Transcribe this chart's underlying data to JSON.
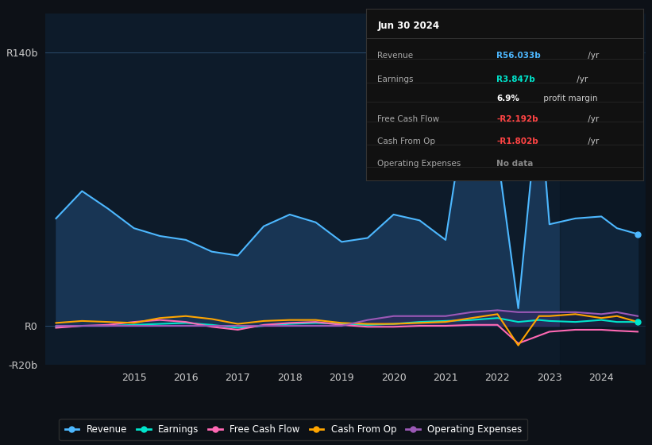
{
  "bg_color": "#0d1117",
  "plot_bg_color": "#0d1b2a",
  "grid_color": "#2a4a6a",
  "title": "Jun 30 2024",
  "ylim": [
    -20,
    160
  ],
  "yticks": [
    -20,
    0,
    140
  ],
  "ytick_labels": [
    "-R20b",
    "R0",
    "R140b"
  ],
  "xticks": [
    2015,
    2016,
    2017,
    2018,
    2019,
    2020,
    2021,
    2022,
    2023,
    2024
  ],
  "xlim": [
    2013.3,
    2024.85
  ],
  "years": [
    2013.5,
    2014.0,
    2014.5,
    2015.0,
    2015.5,
    2016.0,
    2016.5,
    2017.0,
    2017.5,
    2018.0,
    2018.5,
    2019.0,
    2019.5,
    2020.0,
    2020.5,
    2021.0,
    2021.5,
    2022.0,
    2022.4,
    2022.8,
    2023.0,
    2023.5,
    2024.0,
    2024.3,
    2024.7
  ],
  "revenue": [
    55,
    69,
    60,
    50,
    46,
    44,
    38,
    36,
    51,
    57,
    53,
    43,
    45,
    57,
    54,
    44,
    130,
    88,
    9,
    118,
    52,
    55,
    56,
    50,
    47
  ],
  "earnings": [
    -0.5,
    0,
    0,
    0.5,
    1,
    1.5,
    0.5,
    -1,
    0,
    1,
    1.5,
    1,
    0.5,
    1,
    2,
    2.5,
    3,
    4,
    2,
    3,
    2.5,
    2,
    3,
    2,
    2
  ],
  "fcf": [
    -1,
    0,
    0.5,
    2,
    3,
    2,
    -0.5,
    -2,
    0.5,
    1.5,
    2,
    0.5,
    -0.5,
    -0.5,
    0,
    0,
    0.5,
    0.5,
    -9,
    -5,
    -3,
    -2,
    -2,
    -2.5,
    -3
  ],
  "cfop": [
    1.5,
    2.5,
    2,
    1.5,
    4,
    5,
    3.5,
    1,
    2.5,
    3,
    3,
    1.5,
    1,
    1,
    1.5,
    2,
    4,
    6,
    -10,
    5,
    5,
    6,
    4,
    5,
    2
  ],
  "opex": [
    0,
    0,
    0,
    0,
    0,
    0,
    0,
    0,
    0,
    0,
    0,
    0,
    3,
    5,
    5,
    5,
    7,
    8,
    7,
    7,
    7,
    7,
    6,
    7,
    5
  ],
  "rev_color": "#4db8ff",
  "rev_fill": "#1a3a5c",
  "earn_color": "#00e5cc",
  "fcf_color": "#ff69b4",
  "cfop_color": "#ffa500",
  "opex_color": "#9b59b6",
  "opex_fill": "#4a2070",
  "shade_start": 2023.2,
  "shade_color": "#0a1520",
  "legend": [
    {
      "label": "Revenue",
      "color": "#4db8ff"
    },
    {
      "label": "Earnings",
      "color": "#00e5cc"
    },
    {
      "label": "Free Cash Flow",
      "color": "#ff69b4"
    },
    {
      "label": "Cash From Op",
      "color": "#ffa500"
    },
    {
      "label": "Operating Expenses",
      "color": "#9b59b6"
    }
  ],
  "info_rows": [
    {
      "label": "Revenue",
      "value": "R56.033b",
      "suffix": " /yr",
      "val_color": "#4db8ff",
      "suffix_color": "#cccccc"
    },
    {
      "label": "Earnings",
      "value": "R3.847b",
      "suffix": " /yr",
      "val_color": "#00e5cc",
      "suffix_color": "#cccccc"
    },
    {
      "label": "",
      "value": "6.9%",
      "suffix": " profit margin",
      "val_color": "#ffffff",
      "suffix_color": "#cccccc"
    },
    {
      "label": "Free Cash Flow",
      "value": "-R2.192b",
      "suffix": " /yr",
      "val_color": "#ff4444",
      "suffix_color": "#cccccc"
    },
    {
      "label": "Cash From Op",
      "value": "-R1.802b",
      "suffix": " /yr",
      "val_color": "#ff4444",
      "suffix_color": "#cccccc"
    },
    {
      "label": "Operating Expenses",
      "value": "No data",
      "suffix": "",
      "val_color": "#888888",
      "suffix_color": "#cccccc"
    }
  ]
}
